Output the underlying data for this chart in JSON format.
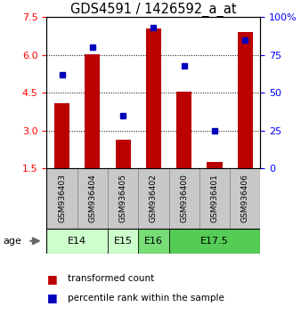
{
  "title": "GDS4591 / 1426592_a_at",
  "samples": [
    "GSM936403",
    "GSM936404",
    "GSM936405",
    "GSM936402",
    "GSM936400",
    "GSM936401",
    "GSM936406"
  ],
  "bar_values": [
    4.1,
    6.05,
    2.65,
    7.05,
    4.55,
    1.75,
    6.9
  ],
  "dot_values_pct": [
    62,
    80,
    35,
    93,
    68,
    25,
    85
  ],
  "age_groups": [
    {
      "label": "E14",
      "start": 0,
      "end": 2,
      "color": "#ccffcc"
    },
    {
      "label": "E15",
      "start": 2,
      "end": 3,
      "color": "#ccffcc"
    },
    {
      "label": "E16",
      "start": 3,
      "end": 4,
      "color": "#77dd77"
    },
    {
      "label": "E17.5",
      "start": 4,
      "end": 7,
      "color": "#55cc55"
    }
  ],
  "ylim_left": [
    1.5,
    7.5
  ],
  "ylim_right": [
    0,
    100
  ],
  "yticks_left": [
    1.5,
    3.0,
    4.5,
    6.0,
    7.5
  ],
  "yticks_right": [
    0,
    25,
    50,
    75,
    100
  ],
  "bar_color": "#bb0000",
  "dot_color": "#0000bb",
  "legend_bar_color": "#bb0000",
  "legend_dot_color": "#0000bb",
  "legend_text_bar": "transformed count",
  "legend_text_dot": "percentile rank within the sample",
  "age_label": "age",
  "background_color": "#ffffff",
  "bar_width": 0.5,
  "title_fontsize": 10.5,
  "tick_fontsize": 8,
  "sample_fontsize": 6.5,
  "age_fontsize": 8,
  "legend_fontsize": 7.5,
  "grid_yticks": [
    3.0,
    4.5,
    6.0
  ],
  "sample_cell_color": "#c8c8c8",
  "sample_cell_edge": "#888888"
}
